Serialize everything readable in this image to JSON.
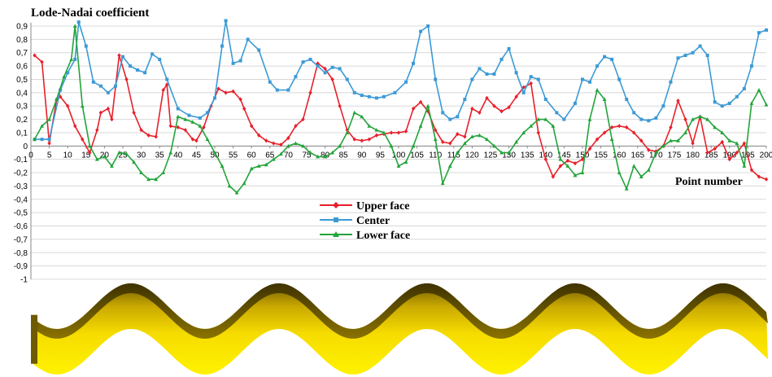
{
  "chart_data": {
    "type": "line",
    "title": "Lode-Nadai coefficient",
    "xlabel": "Point number",
    "ylabel": "",
    "xlim": [
      0,
      200
    ],
    "ylim": [
      -1,
      0.9
    ],
    "grid": true,
    "legend_position": "center",
    "x_ticks": [
      "0",
      "5",
      "10",
      "15",
      "20",
      "25",
      "30",
      "35",
      "40",
      "45",
      "50",
      "55",
      "60",
      "65",
      "70",
      "75",
      "80",
      "85",
      "90",
      "95",
      "100",
      "105",
      "110",
      "115",
      "120",
      "125",
      "130",
      "135",
      "140",
      "145",
      "150",
      "155",
      "160",
      "165",
      "170",
      "175",
      "180",
      "185",
      "190",
      "195",
      "200"
    ],
    "y_ticks": [
      "0,9",
      "0,8",
      "0,7",
      "0,6",
      "0,5",
      "0,4",
      "0,3",
      "0,2",
      "0,1",
      "0",
      "-0,1",
      "-0,2",
      "-0,3",
      "-0,4",
      "-0,5",
      "-0,6",
      "-0,7",
      "-0,8",
      "-0,9",
      "-1"
    ],
    "series": [
      {
        "name": "Upper face",
        "color": "#e8202a",
        "marker": "diamond",
        "x": [
          1,
          3,
          5,
          7,
          8,
          10,
          12,
          14,
          16,
          18,
          19,
          21,
          22,
          24,
          26,
          28,
          30,
          32,
          34,
          36,
          37,
          38,
          40,
          42,
          44,
          45,
          47,
          49,
          51,
          53,
          55,
          57,
          58,
          60,
          62,
          64,
          66,
          68,
          70,
          72,
          74,
          76,
          78,
          80,
          82,
          84,
          86,
          88,
          90,
          92,
          94,
          96,
          98,
          100,
          102,
          104,
          106,
          108,
          110,
          112,
          114,
          116,
          118,
          120,
          122,
          124,
          126,
          128,
          130,
          132,
          134,
          136,
          138,
          140,
          142,
          144,
          146,
          148,
          150,
          152,
          154,
          156,
          158,
          160,
          162,
          164,
          166,
          168,
          170,
          172,
          174,
          176,
          178,
          180,
          182,
          184,
          186,
          188,
          190,
          192,
          194,
          196,
          198,
          200
        ],
        "y": [
          0.68,
          0.63,
          0.02,
          0.35,
          0.37,
          0.3,
          0.15,
          0.05,
          -0.05,
          0.12,
          0.25,
          0.28,
          0.2,
          0.68,
          0.5,
          0.25,
          0.12,
          0.08,
          0.07,
          0.42,
          0.46,
          0.15,
          0.14,
          0.12,
          0.05,
          0.04,
          0.14,
          0.3,
          0.43,
          0.4,
          0.41,
          0.35,
          0.28,
          0.15,
          0.08,
          0.04,
          0.02,
          0.01,
          0.06,
          0.15,
          0.2,
          0.4,
          0.62,
          0.58,
          0.5,
          0.3,
          0.12,
          0.05,
          0.04,
          0.05,
          0.08,
          0.09,
          0.1,
          0.1,
          0.11,
          0.28,
          0.33,
          0.26,
          0.12,
          0.03,
          0.02,
          0.09,
          0.07,
          0.28,
          0.25,
          0.36,
          0.3,
          0.26,
          0.29,
          0.37,
          0.44,
          0.47,
          0.1,
          -0.1,
          -0.23,
          -0.15,
          -0.11,
          -0.13,
          -0.1,
          -0.02,
          0.05,
          0.1,
          0.14,
          0.15,
          0.14,
          0.1,
          0.04,
          -0.03,
          -0.04,
          0.0,
          0.14,
          0.34,
          0.2,
          0.02,
          0.22,
          -0.05,
          -0.02,
          0.03,
          -0.1,
          -0.05,
          0.02,
          -0.18,
          -0.23,
          -0.25
        ]
      },
      {
        "name": "Center",
        "color": "#3b9ad6",
        "marker": "square",
        "x": [
          1,
          3,
          5,
          8,
          10,
          12,
          13,
          15,
          17,
          19,
          21,
          23,
          25,
          27,
          29,
          31,
          33,
          35,
          37,
          40,
          43,
          46,
          48,
          50,
          52,
          53,
          55,
          57,
          59,
          62,
          65,
          67,
          70,
          72,
          74,
          76,
          78,
          80,
          82,
          84,
          86,
          88,
          90,
          92,
          94,
          96,
          99,
          102,
          104,
          106,
          108,
          110,
          112,
          114,
          116,
          118,
          120,
          122,
          124,
          126,
          128,
          130,
          132,
          134,
          136,
          138,
          140,
          143,
          145,
          148,
          150,
          152,
          154,
          156,
          158,
          160,
          162,
          164,
          166,
          168,
          170,
          172,
          174,
          176,
          178,
          180,
          182,
          184,
          186,
          188,
          190,
          192,
          194,
          196,
          198,
          200
        ],
        "y": [
          0.05,
          0.05,
          0.05,
          0.42,
          0.55,
          0.65,
          0.93,
          0.75,
          0.48,
          0.45,
          0.4,
          0.45,
          0.67,
          0.6,
          0.57,
          0.55,
          0.69,
          0.65,
          0.5,
          0.28,
          0.23,
          0.21,
          0.25,
          0.36,
          0.75,
          0.94,
          0.62,
          0.64,
          0.8,
          0.72,
          0.48,
          0.42,
          0.42,
          0.52,
          0.63,
          0.65,
          0.6,
          0.55,
          0.59,
          0.58,
          0.5,
          0.4,
          0.38,
          0.37,
          0.36,
          0.37,
          0.4,
          0.48,
          0.62,
          0.86,
          0.9,
          0.5,
          0.25,
          0.2,
          0.22,
          0.35,
          0.5,
          0.58,
          0.54,
          0.54,
          0.65,
          0.73,
          0.55,
          0.4,
          0.52,
          0.5,
          0.35,
          0.25,
          0.2,
          0.32,
          0.5,
          0.48,
          0.6,
          0.67,
          0.65,
          0.5,
          0.35,
          0.25,
          0.2,
          0.19,
          0.21,
          0.3,
          0.48,
          0.66,
          0.68,
          0.7,
          0.75,
          0.68,
          0.33,
          0.3,
          0.32,
          0.37,
          0.43,
          0.6,
          0.85,
          0.87
        ]
      },
      {
        "name": "Lower face",
        "color": "#22a43a",
        "marker": "triangle",
        "x": [
          1,
          3,
          5,
          7,
          9,
          11,
          12,
          14,
          16,
          18,
          20,
          22,
          24,
          26,
          28,
          30,
          32,
          34,
          36,
          38,
          40,
          42,
          44,
          46,
          48,
          50,
          52,
          54,
          56,
          58,
          60,
          62,
          64,
          66,
          68,
          70,
          72,
          74,
          76,
          78,
          80,
          82,
          84,
          86,
          88,
          90,
          92,
          94,
          96,
          98,
          100,
          102,
          104,
          106,
          108,
          110,
          112,
          114,
          116,
          118,
          120,
          122,
          124,
          126,
          128,
          130,
          132,
          134,
          136,
          138,
          140,
          142,
          144,
          146,
          148,
          150,
          152,
          154,
          156,
          158,
          160,
          162,
          164,
          166,
          168,
          170,
          172,
          174,
          176,
          178,
          180,
          182,
          184,
          186,
          188,
          190,
          192,
          194,
          196,
          198,
          200
        ],
        "y": [
          0.05,
          0.15,
          0.2,
          0.35,
          0.52,
          0.65,
          0.9,
          0.3,
          0.0,
          -0.1,
          -0.08,
          -0.15,
          -0.05,
          -0.06,
          -0.12,
          -0.2,
          -0.25,
          -0.25,
          -0.2,
          -0.05,
          0.22,
          0.2,
          0.18,
          0.15,
          0.05,
          -0.05,
          -0.15,
          -0.3,
          -0.35,
          -0.28,
          -0.17,
          -0.15,
          -0.14,
          -0.1,
          -0.06,
          0.0,
          0.02,
          0.0,
          -0.05,
          -0.08,
          -0.08,
          -0.05,
          0.0,
          0.1,
          0.25,
          0.22,
          0.15,
          0.12,
          0.1,
          0.0,
          -0.15,
          -0.12,
          0.0,
          0.15,
          0.3,
          0.05,
          -0.28,
          -0.15,
          -0.05,
          0.02,
          0.07,
          0.08,
          0.05,
          0.0,
          -0.05,
          -0.05,
          0.03,
          0.1,
          0.15,
          0.2,
          0.2,
          0.15,
          -0.1,
          -0.15,
          -0.22,
          -0.2,
          0.2,
          0.42,
          0.35,
          0.05,
          -0.2,
          -0.32,
          -0.15,
          -0.23,
          -0.18,
          -0.05,
          0.0,
          0.04,
          0.04,
          0.1,
          0.2,
          0.22,
          0.2,
          0.14,
          0.1,
          0.04,
          0.02,
          -0.15,
          0.32,
          0.42,
          0.31
        ]
      }
    ]
  },
  "illustration": {
    "name": "corrugated-plate-3d-view",
    "colors": {
      "light": "#ffee00",
      "mid": "#f2d200",
      "dark": "#7a6400",
      "darker": "#4a3a00"
    }
  }
}
